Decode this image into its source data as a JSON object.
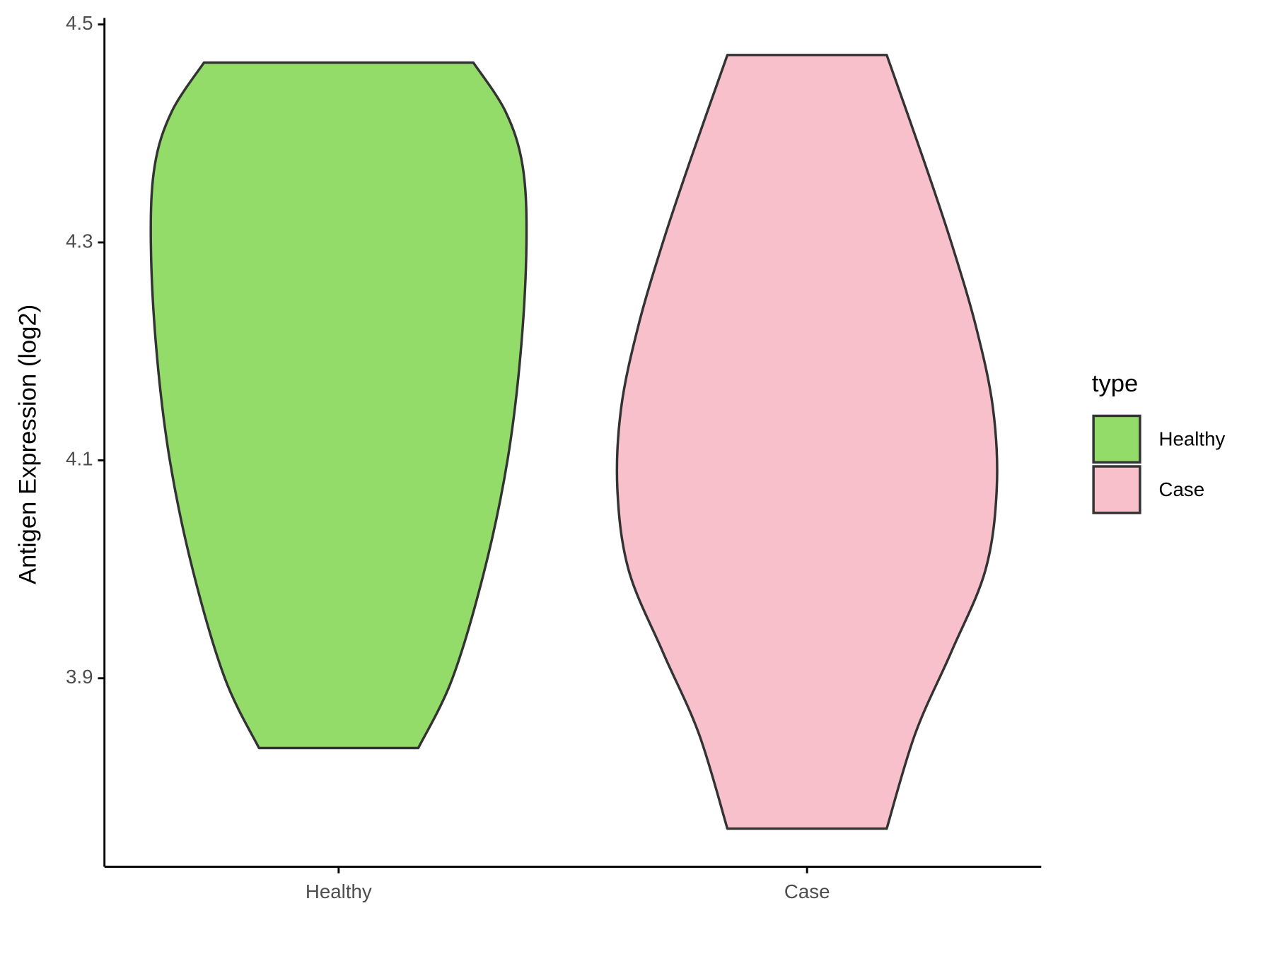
{
  "chart_data": {
    "type": "violin",
    "y_label": "Antigen Expression (log2)",
    "legend_title": "type",
    "legend_position": "right",
    "categories": [
      "Healthy",
      "Case"
    ],
    "ylim": [
      3.727,
      4.506
    ],
    "yticks": [
      3.9,
      4.1,
      4.3,
      4.5
    ],
    "grid": false,
    "series": [
      {
        "name": "Healthy",
        "color": "#94dc6a",
        "y": [
          4.465,
          4.42,
          4.37,
          4.3,
          4.2,
          4.1,
          4.0,
          3.9,
          3.836
        ],
        "width": [
          0.71,
          0.88,
          0.97,
          0.99,
          0.96,
          0.89,
          0.77,
          0.6,
          0.42
        ]
      },
      {
        "name": "Case",
        "color": "#f7c0cb",
        "y": [
          4.472,
          4.373,
          4.3,
          4.223,
          4.148,
          4.074,
          3.999,
          3.924,
          3.849,
          3.762
        ],
        "width": [
          0.42,
          0.62,
          0.76,
          0.89,
          0.98,
          1.0,
          0.94,
          0.76,
          0.57,
          0.42
        ]
      }
    ]
  }
}
